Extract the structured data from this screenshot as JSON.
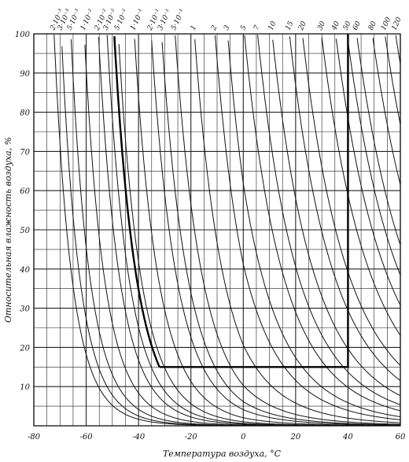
{
  "chart_data": {
    "type": "line",
    "title": "",
    "xlabel": "Температура воздуха, °C",
    "ylabel": "Относительная влажность воздуха, %",
    "xlim": [
      -80,
      60
    ],
    "ylim": [
      0,
      100
    ],
    "x_ticks": [
      -80,
      -60,
      -40,
      -20,
      0,
      20,
      40,
      60
    ],
    "x_tick_labels": [
      "-80",
      "-60",
      "-40",
      "-20",
      "0",
      "20",
      "40",
      "60"
    ],
    "y_ticks": [
      10,
      20,
      30,
      40,
      50,
      60,
      70,
      80,
      90,
      100
    ],
    "y_tick_labels": [
      "10",
      "20",
      "30",
      "40",
      "50",
      "60",
      "70",
      "80",
      "90",
      "100"
    ],
    "grid": true,
    "curve_family": "absolute humidity (g/m³) isolines",
    "curve_labels": [
      "2·10⁻³",
      "3·10⁻³",
      "5·10⁻³",
      "1·10⁻²",
      "2·10⁻²",
      "3·10⁻²",
      "5·10⁻²",
      "1·10⁻¹",
      "2·10⁻¹",
      "3·10⁻¹",
      "5·10⁻¹",
      "1",
      "2",
      "3",
      "5",
      "7",
      "10",
      "15",
      "20",
      "30",
      "40",
      "50",
      "60",
      "80",
      "100",
      "120"
    ],
    "curve_values": [
      0.002,
      0.003,
      0.005,
      0.01,
      0.02,
      0.03,
      0.05,
      0.1,
      0.2,
      0.3,
      0.5,
      1,
      2,
      3,
      5,
      7,
      10,
      15,
      20,
      30,
      40,
      50,
      60,
      80,
      100,
      120
    ],
    "highlight_region": {
      "x": [
        -32,
        40
      ],
      "y": [
        15,
        100
      ],
      "description": "bold boundary: from -32 °C at 15 % to 40 °C at 15 %, up to 100 %; bold isoline at -45 °C"
    }
  }
}
